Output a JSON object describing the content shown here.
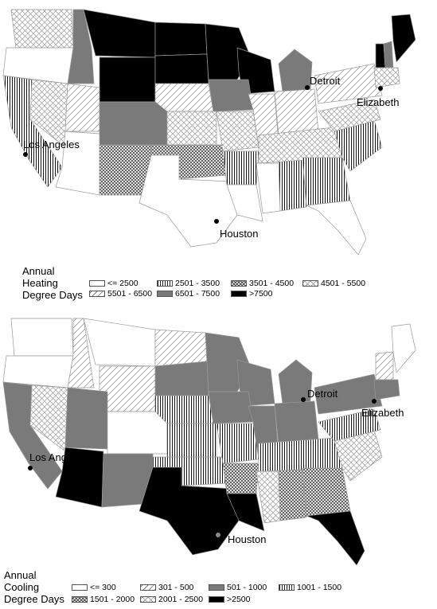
{
  "heating": {
    "legend_title_lines": [
      "Annual",
      "Heating",
      "Degree Days"
    ],
    "legend": [
      {
        "label": "<= 2500",
        "pattern": "white"
      },
      {
        "label": "2501 - 3500",
        "pattern": "vertical"
      },
      {
        "label": "3501 - 4500",
        "pattern": "crosshatch"
      },
      {
        "label": "4501 - 5500",
        "pattern": "crosshatch-light"
      },
      {
        "label": "5501 - 6500",
        "pattern": "diagonal"
      },
      {
        "label": "6501 - 7500",
        "pattern": "gray"
      },
      {
        "label": ">7500",
        "pattern": "black"
      }
    ],
    "cities": [
      "Detroit",
      "Elizabeth",
      "Los Angeles",
      "Houston"
    ]
  },
  "cooling": {
    "legend_title_lines": [
      "Annual",
      "Cooling",
      "Degree Days"
    ],
    "legend": [
      {
        "label": "<= 300",
        "pattern": "white"
      },
      {
        "label": "301 - 500",
        "pattern": "diagonal"
      },
      {
        "label": "501 - 1000",
        "pattern": "gray"
      },
      {
        "label": "1001 - 1500",
        "pattern": "vertical"
      },
      {
        "label": "1501 - 2000",
        "pattern": "crosshatch"
      },
      {
        "label": "2001 - 2500",
        "pattern": "crosshatch-light"
      },
      {
        "label": ">2500",
        "pattern": "black"
      }
    ],
    "cities": [
      "Detroit",
      "Elizabeth",
      "Los Angeles",
      "Houston"
    ]
  },
  "colors": {
    "black": "#000000",
    "gray": "#7a7a7a",
    "white": "#ffffff",
    "border": "#999999"
  }
}
